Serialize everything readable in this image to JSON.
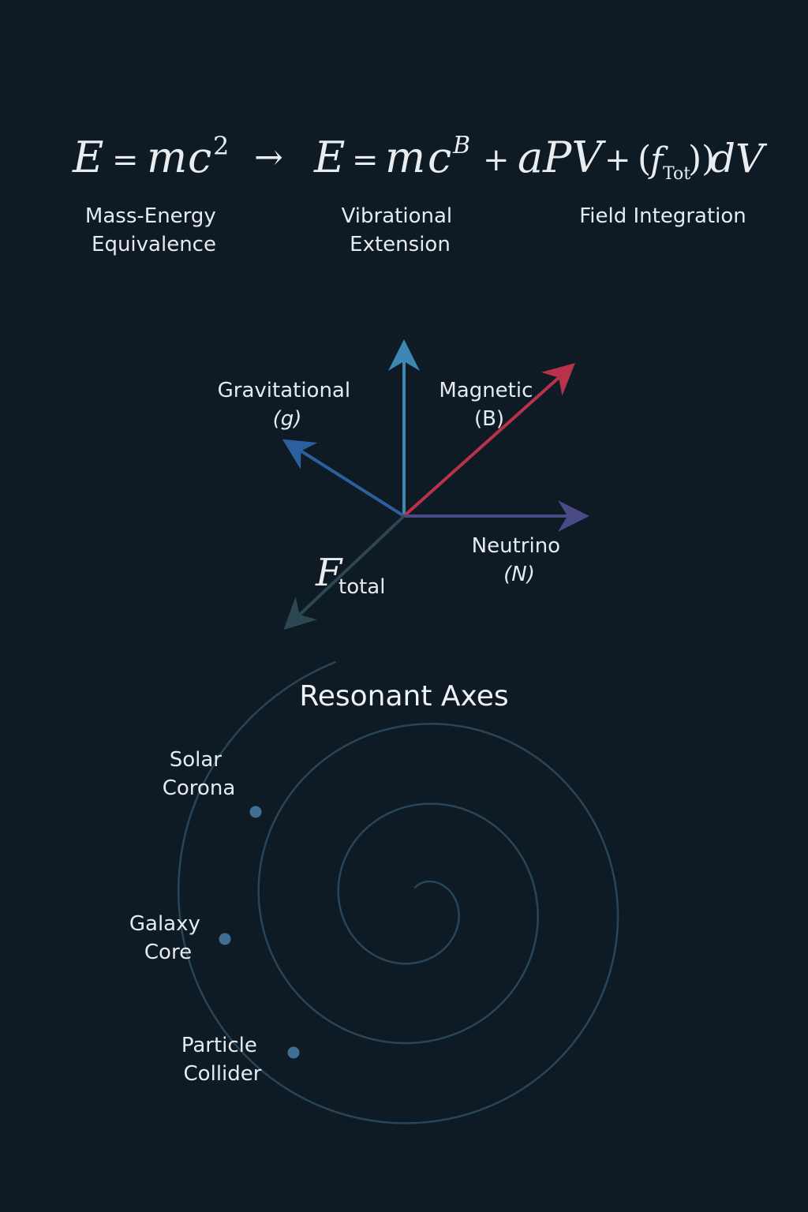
{
  "equation": {
    "left": {
      "E": "E",
      "eq": "=",
      "m": "m",
      "c": "c",
      "exp": "2"
    },
    "arrow": "→",
    "right": {
      "E": "E",
      "eq": "=",
      "m": "m",
      "c": "c",
      "exp": "B",
      "plus1": "+",
      "a": "a",
      "PV": "PV",
      "plus2": "+",
      "open": "(",
      "f": "f",
      "fsub": "Tot",
      "close": "))",
      "dV": "dV"
    }
  },
  "captions": {
    "mass_energy": [
      "Mass-Energy",
      "Equivalence"
    ],
    "vibrational": [
      "Vibrational",
      "Extension"
    ],
    "field": [
      "Field Integration"
    ]
  },
  "vectors": {
    "gravitational": {
      "name": "Gravitational",
      "symbol": "(g)",
      "color": "#2b5f9e"
    },
    "magnetic": {
      "name": "Magnetic",
      "symbol": "(B)",
      "color": "#b8334a"
    },
    "vertical": {
      "color": "#3f86b0"
    },
    "neutrino": {
      "name": "Neutrino",
      "symbol": "(N)",
      "color": "#4a4a86"
    },
    "total": {
      "F": "F",
      "sub": "total",
      "color": "#2c4752"
    }
  },
  "resonant": {
    "title": "Resonant Axes",
    "spiral_color": "#2a4558",
    "dot_color": "#3f6f92",
    "points": [
      {
        "lines": [
          "Solar",
          "Corona"
        ]
      },
      {
        "lines": [
          "Galaxy",
          "Core"
        ]
      },
      {
        "lines": [
          "Particle",
          "Collider"
        ]
      }
    ]
  }
}
